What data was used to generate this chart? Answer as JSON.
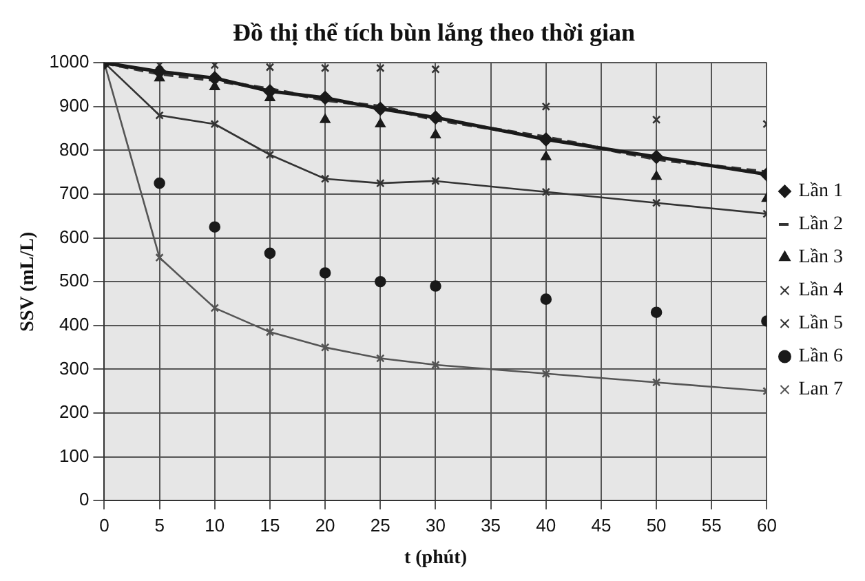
{
  "chart_data": {
    "type": "line",
    "title": "Đồ thị thể tích bùn lắng theo thời gian",
    "xlabel": "t (phút)",
    "ylabel": "SSV (mL/L)",
    "x": [
      0,
      5,
      10,
      15,
      20,
      25,
      30,
      40,
      50,
      60
    ],
    "series": [
      {
        "name": "Lần 1",
        "type": "line",
        "marker": "diamond",
        "line_style": "solid",
        "color": "#1a1a1a",
        "values": [
          1000,
          980,
          965,
          935,
          920,
          895,
          875,
          825,
          785,
          745
        ]
      },
      {
        "name": "Lần 2",
        "type": "line",
        "marker": "none",
        "line_style": "dashed",
        "color": "#333333",
        "values": [
          1000,
          975,
          960,
          940,
          915,
          900,
          870,
          830,
          780,
          750
        ]
      },
      {
        "name": "Lần 3",
        "type": "scatter",
        "marker": "triangle",
        "color": "#1a1a1a",
        "values": [
          null,
          965,
          945,
          920,
          870,
          860,
          835,
          785,
          740,
          690
        ]
      },
      {
        "name": "Lần 4",
        "type": "scatter",
        "marker": "cross",
        "color": "#333333",
        "values": [
          null,
          995,
          995,
          990,
          988,
          988,
          985,
          900,
          870,
          860
        ]
      },
      {
        "name": "Lần 5",
        "type": "line",
        "marker": "cross",
        "line_style": "solid",
        "color": "#333333",
        "values": [
          1000,
          880,
          860,
          790,
          735,
          725,
          730,
          705,
          680,
          655
        ]
      },
      {
        "name": "Lần 6",
        "type": "scatter",
        "marker": "circle",
        "color": "#1a1a1a",
        "values": [
          null,
          725,
          625,
          565,
          520,
          500,
          490,
          460,
          430,
          410
        ]
      },
      {
        "name": "Lan 7",
        "type": "line",
        "marker": "cross",
        "line_style": "solid",
        "color": "#555555",
        "values": [
          1000,
          555,
          440,
          385,
          350,
          325,
          310,
          290,
          270,
          250
        ]
      }
    ],
    "xlim": [
      0,
      60
    ],
    "xticks": [
      0,
      5,
      10,
      15,
      20,
      25,
      30,
      35,
      40,
      45,
      50,
      55,
      60
    ],
    "ylim": [
      0,
      1000
    ],
    "yticks": [
      0,
      100,
      200,
      300,
      400,
      500,
      600,
      700,
      800,
      900,
      1000
    ],
    "grid": true,
    "legend": "right"
  }
}
